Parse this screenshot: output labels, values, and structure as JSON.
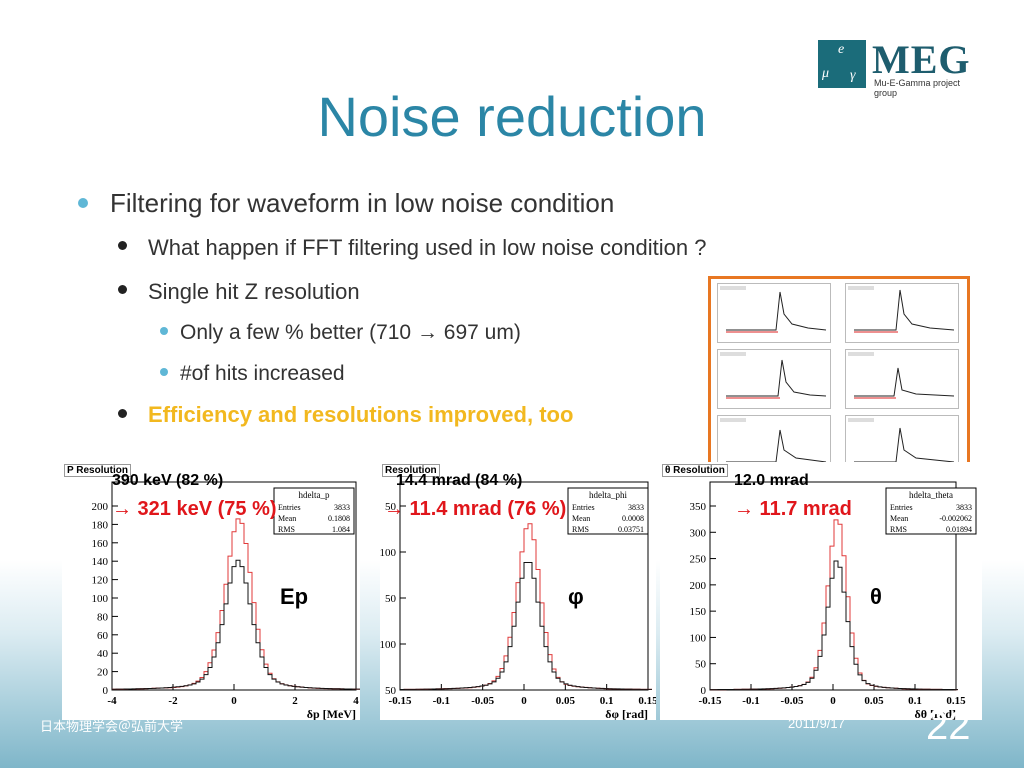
{
  "logo": {
    "name": "MEG",
    "subtitle": "Mu-E-Gamma project group",
    "symbols": [
      "μ",
      "e",
      "γ"
    ]
  },
  "title": "Noise reduction",
  "bullets": {
    "b1": "Filtering for waveform in low noise condition",
    "b2a": "What happen if FFT filtering used in low noise condition ?",
    "b2b": "Single hit Z resolution",
    "b3a": "Only a few % better (710 → 697 um)",
    "b3b": "#of hits increased",
    "b2c": "Efficiency and resolutions improved, too"
  },
  "plots": [
    {
      "tag": "P Resolution",
      "before": "390 keV (82 %)",
      "after": "→ 321 keV (75 %)",
      "symbol": "Ep",
      "stats": {
        "name": "hdelta_p",
        "entries_label": "Entries",
        "entries": "3833",
        "mean_label": "Mean",
        "mean": "0.1808",
        "rms_label": "RMS",
        "rms": "1.084"
      },
      "xlabel": "δp [MeV]",
      "xticks": [
        "-4",
        "-2",
        "0",
        "2",
        "4"
      ],
      "yticks": [
        "0",
        "20",
        "40",
        "60",
        "80",
        "100",
        "120",
        "140",
        "160",
        "180",
        "200"
      ]
    },
    {
      "tag": "Resolution",
      "before": "14.4 mrad (84 %)",
      "after": "→ 11.4 mrad (76 %)",
      "symbol": "φ",
      "stats": {
        "name": "hdelta_phi",
        "entries_label": "Entries",
        "entries": "3833",
        "mean_label": "Mean",
        "mean": "0.0008",
        "rms_label": "RMS",
        "rms": "0.03751"
      },
      "xlabel": "δφ [rad]",
      "xticks": [
        "-0.15",
        "-0.1",
        "-0.05",
        "0",
        "0.05",
        "0.1",
        "0.15"
      ],
      "yticks": [
        "50",
        "100",
        "50",
        "100",
        "50"
      ]
    },
    {
      "tag": "θ Resolution",
      "before": "12.0 mrad",
      "after": "→ 11.7 mrad",
      "symbol": "θ",
      "stats": {
        "name": "hdelta_theta",
        "entries_label": "Entries",
        "entries": "3833",
        "mean_label": "Mean",
        "mean": "-0.002062",
        "rms_label": "RMS",
        "rms": "0.01894"
      },
      "xlabel": "δθ [rad]",
      "xticks": [
        "-0.15",
        "-0.1",
        "-0.05",
        "0",
        "0.05",
        "0.1",
        "0.15"
      ],
      "yticks": [
        "0",
        "50",
        "100",
        "150",
        "200",
        "250",
        "300",
        "350"
      ]
    }
  ],
  "footer": {
    "left": "日本物理学会＠弘前大学",
    "date": "2011/9/17",
    "page": "22"
  },
  "colors": {
    "title": "#2b86a6",
    "highlight": "#f2b81f",
    "red": "#e0161b",
    "frame": "#e87722"
  }
}
